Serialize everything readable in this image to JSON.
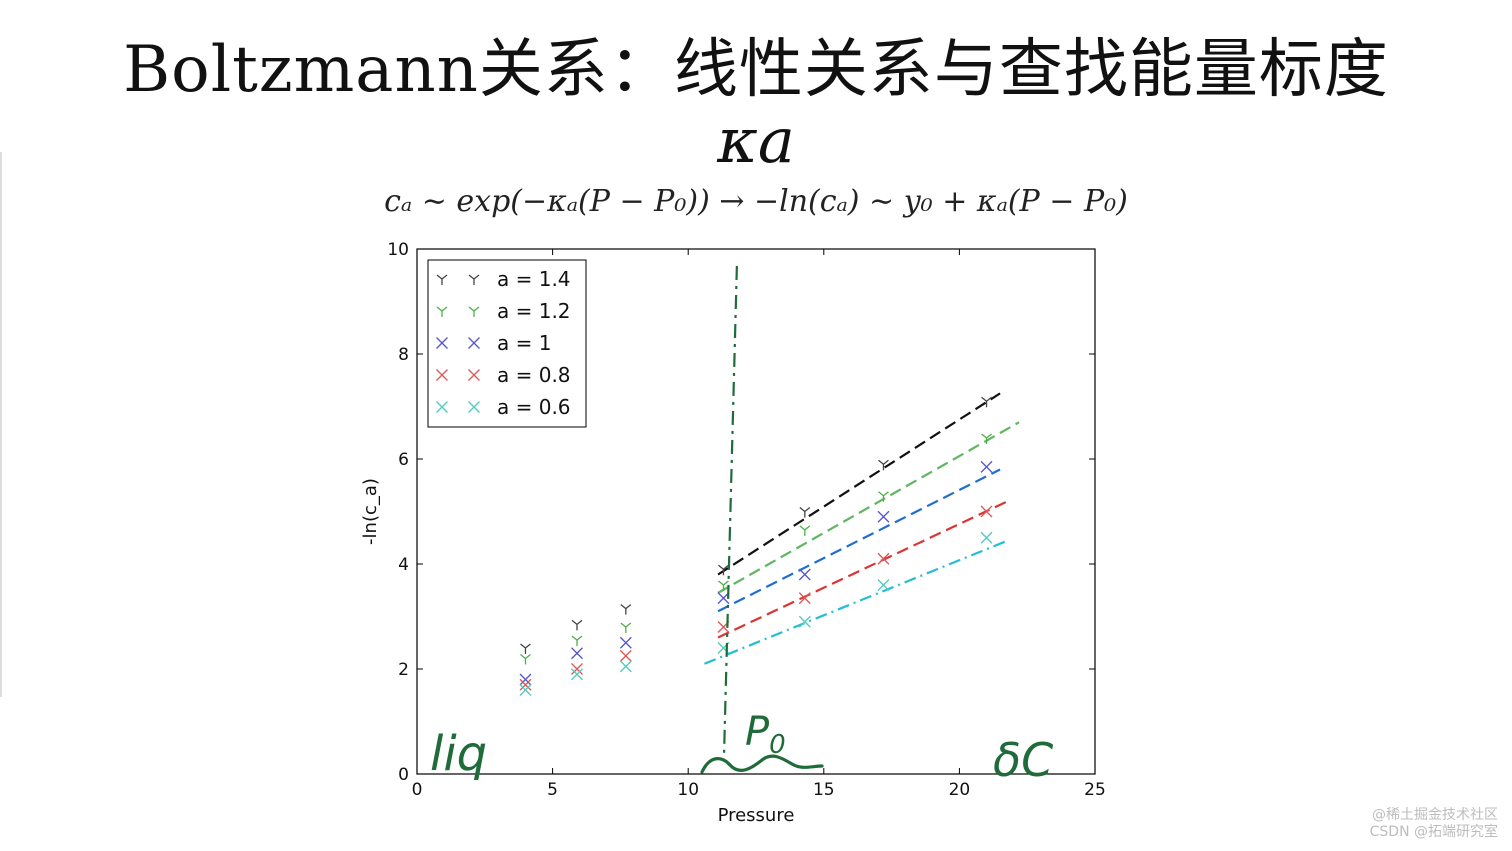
{
  "slide": {
    "title": "Boltzmann关系：线性关系与查找能量标度",
    "symbol": "κa",
    "formula": "cₐ ∼ exp(−κₐ(P − P₀)) → −ln(cₐ) ∼ y₀ + κₐ(P − P₀)"
  },
  "watermark": {
    "line1": "@稀土掘金技术社区",
    "line2": "CSDN @拓端研究室"
  },
  "annotations": {
    "liq": "liq",
    "p0": "P0",
    "sc": "δC",
    "color": "#1f6b3a"
  },
  "chart_data": {
    "type": "scatter",
    "xlabel": "Pressure",
    "ylabel": "-ln(c_a)",
    "xlim": [
      0,
      25
    ],
    "ylim": [
      0,
      10
    ],
    "xticks": [
      0,
      5,
      10,
      15,
      20,
      25
    ],
    "yticks": [
      0,
      2,
      4,
      6,
      8,
      10
    ],
    "grid": false,
    "legend_position": "top-left",
    "x": [
      4,
      5.9,
      7.7,
      11.3,
      14.3,
      17.2,
      21
    ],
    "series": [
      {
        "name": "a = 1.4",
        "marker": "tri_down",
        "color": "#444444",
        "y": [
          2.4,
          2.85,
          3.15,
          3.9,
          5.0,
          5.9,
          7.1
        ]
      },
      {
        "name": "a = 1.2",
        "marker": "tri_down",
        "color": "#4daf4a",
        "y": [
          2.2,
          2.55,
          2.8,
          3.6,
          4.65,
          5.3,
          6.4
        ]
      },
      {
        "name": "a = 1",
        "marker": "x",
        "color": "#5555cc",
        "y": [
          1.8,
          2.3,
          2.5,
          3.35,
          3.8,
          4.9,
          5.85
        ]
      },
      {
        "name": "a = 0.8",
        "marker": "x",
        "color": "#e05555",
        "y": [
          1.7,
          2.0,
          2.25,
          2.8,
          3.35,
          4.1,
          5.0
        ]
      },
      {
        "name": "a = 0.6",
        "marker": "x",
        "color": "#4ecbc0",
        "y": [
          1.6,
          1.9,
          2.05,
          2.4,
          2.9,
          3.6,
          4.5
        ]
      }
    ],
    "fit_lines": [
      {
        "color": "#111111",
        "x": [
          11.1,
          21.5
        ],
        "y": [
          3.8,
          7.25
        ],
        "dash": "12 6"
      },
      {
        "color": "#5fb760",
        "x": [
          11.1,
          22.2
        ],
        "y": [
          3.45,
          6.7
        ],
        "dash": "12 6"
      },
      {
        "color": "#1f6fd0",
        "x": [
          11.1,
          21.5
        ],
        "y": [
          3.1,
          5.8
        ],
        "dash": "12 6"
      },
      {
        "color": "#dd3333",
        "x": [
          11.1,
          21.8
        ],
        "y": [
          2.6,
          5.2
        ],
        "dash": "12 6"
      },
      {
        "color": "#22bfd0",
        "x": [
          10.6,
          21.8
        ],
        "y": [
          2.1,
          4.45
        ],
        "dash": "12 5 2 5"
      }
    ],
    "vline": {
      "x": 11.5,
      "color": "#1f6b3a",
      "dash": "14 6 3 6"
    }
  }
}
